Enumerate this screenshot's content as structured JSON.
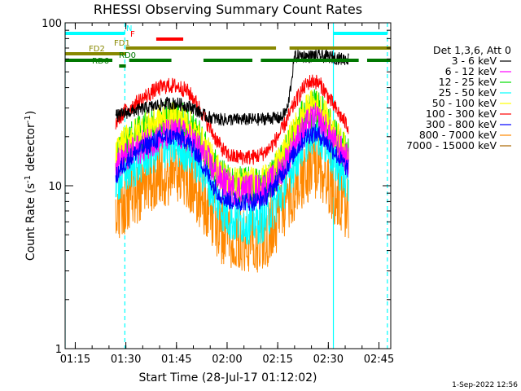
{
  "chart_data": {
    "type": "line",
    "title": "RHESSI Observing Summary Count Rates",
    "xlabel": "Start Time (28-Jul-17 01:12:02)",
    "ylabel_main": "Count Rate (s",
    "ylabel_sup1": "-1",
    "ylabel_mid": " detector",
    "ylabel_sup2": "-1",
    "ylabel_end": ")",
    "yscale": "log",
    "ylim": [
      1,
      100
    ],
    "xlim_minutes": [
      72,
      168.5
    ],
    "yticks": [
      {
        "value": 1,
        "label": "1"
      },
      {
        "value": 10,
        "label": "10"
      },
      {
        "value": 100,
        "label": "100"
      }
    ],
    "xticks": [
      {
        "minutes": 75,
        "label": "01:15"
      },
      {
        "minutes": 90,
        "label": "01:30"
      },
      {
        "minutes": 105,
        "label": "01:45"
      },
      {
        "minutes": 120,
        "label": "02:00"
      },
      {
        "minutes": 135,
        "label": "02:15"
      },
      {
        "minutes": 150,
        "label": "02:30"
      },
      {
        "minutes": 165,
        "label": "02:45"
      }
    ],
    "legend": {
      "header": "Det 1,3,6, Att 0",
      "placement": "right"
    },
    "x_minutes": [
      87,
      88,
      90,
      93,
      96,
      99,
      102,
      105,
      108,
      110,
      112,
      114,
      116,
      118,
      120,
      122,
      124,
      126,
      128,
      130,
      132,
      134,
      136,
      138,
      140,
      142,
      144,
      146,
      148,
      150,
      152,
      154,
      156
    ],
    "series": [
      {
        "name": "3 - 6 keV",
        "color": "#000000",
        "values": [
          27,
          27,
          28,
          29,
          30,
          31,
          32,
          32,
          31,
          30,
          28,
          26.5,
          26,
          25.5,
          25.5,
          25.5,
          25.5,
          25.5,
          25.5,
          25.5,
          26,
          26,
          26,
          30,
          62,
          63,
          62,
          63,
          62,
          62,
          61,
          60,
          60
        ]
      },
      {
        "name": "6 - 12 keV",
        "color": "#ff00ff",
        "values": [
          13,
          14,
          15,
          16.5,
          18,
          19.5,
          20.5,
          21,
          20,
          18.5,
          16.5,
          14.5,
          12.5,
          11,
          10,
          9.5,
          9.5,
          9.5,
          9.5,
          9.5,
          10,
          11,
          12.5,
          15,
          18,
          21,
          24,
          26,
          24,
          21,
          18,
          16,
          14
        ]
      },
      {
        "name": "12 - 25 keV",
        "color": "#00dd00",
        "values": [
          14,
          16,
          18,
          20,
          22.5,
          24.5,
          26,
          26,
          24.5,
          22,
          19,
          16,
          13.5,
          11.5,
          10.5,
          10,
          10,
          10,
          10,
          10,
          10.5,
          12,
          14,
          17,
          21,
          25,
          28,
          30,
          28,
          24,
          20,
          17,
          15
        ]
      },
      {
        "name": "25 - 50 keV",
        "color": "#00ffff",
        "values": [
          10,
          11,
          12,
          13.5,
          15,
          16.5,
          17.5,
          17.5,
          16.5,
          15,
          13,
          11,
          9,
          7.5,
          6.5,
          6,
          6,
          6,
          6,
          6,
          6.5,
          7.5,
          9,
          11,
          14,
          17,
          20,
          22,
          20,
          17,
          14,
          12,
          10
        ]
      },
      {
        "name": "50 - 100 keV",
        "color": "#ffff00",
        "values": [
          15,
          17,
          19,
          21,
          23,
          25,
          26,
          26,
          24.5,
          22,
          19,
          16.5,
          14,
          12,
          11,
          10.5,
          10.5,
          10.5,
          10.5,
          10.5,
          11,
          12.5,
          14.5,
          18,
          22,
          26,
          30,
          32,
          29,
          25,
          21,
          18,
          15.5
        ]
      },
      {
        "name": "100 - 300 keV",
        "color": "#ff0000",
        "values": [
          24,
          26,
          29,
          32,
          35.5,
          39,
          41,
          41,
          38.5,
          34.5,
          29.5,
          24.5,
          20.5,
          17.5,
          15.5,
          15,
          15,
          15,
          15,
          15.5,
          16.5,
          18.5,
          21.5,
          26,
          32,
          38,
          43,
          44,
          41,
          35,
          30,
          26,
          23
        ]
      },
      {
        "name": "300 - 800 keV",
        "color": "#0000ff",
        "values": [
          11,
          12.5,
          14,
          16,
          17.5,
          19,
          20,
          20,
          19,
          17,
          14.5,
          12,
          10,
          8.8,
          8.2,
          8,
          8,
          8,
          8,
          8.2,
          8.8,
          10,
          11.5,
          13.5,
          16,
          18.5,
          20.5,
          21,
          20,
          18,
          16,
          14,
          12.5
        ]
      },
      {
        "name": "800 - 7000 keV",
        "color": "#ff8800",
        "values": [
          6.5,
          7.5,
          8.5,
          9.5,
          10.5,
          11.5,
          12.5,
          12.5,
          12,
          10.5,
          9,
          7.5,
          6.5,
          5.5,
          5,
          4.7,
          4.7,
          4.7,
          4.7,
          4.8,
          5.2,
          6,
          7,
          8.5,
          10,
          11.5,
          13,
          13.5,
          12.5,
          11,
          9.5,
          8.5,
          7.5
        ]
      },
      {
        "name": "7000 - 15000 keV",
        "color": "#aa6600",
        "values": []
      }
    ],
    "flag_bars": [
      {
        "label": "N",
        "color": "#00ffff",
        "segments": [
          [
            72,
            89.7
          ],
          [
            151.5,
            167.5
          ]
        ]
      },
      {
        "label": "F",
        "color": "#ff0000",
        "segments": [
          [
            99,
            107
          ]
        ]
      },
      {
        "label": "FD1",
        "color": "#888800",
        "segments": [
          [
            90,
            134.5
          ],
          [
            138.5,
            168.5
          ]
        ]
      },
      {
        "label": "FD2",
        "color": "#888800",
        "segments": [
          [
            72,
            90
          ]
        ]
      },
      {
        "label": "RD0",
        "color": "#007700",
        "segments": [
          [
            72,
            86
          ],
          [
            91,
            103.5
          ],
          [
            113,
            127.5
          ],
          [
            130,
            159
          ],
          [
            161.5,
            168.5
          ]
        ]
      },
      {
        "label": "RD6",
        "color": "#007700",
        "segments": [
          [
            88,
            90
          ]
        ]
      }
    ],
    "vlines": [
      {
        "minutes": 72,
        "color": "#00ffff",
        "style": "solid"
      },
      {
        "minutes": 89.7,
        "color": "#00ffff",
        "style": "dashed"
      },
      {
        "minutes": 151.5,
        "color": "#00ffff",
        "style": "solid"
      },
      {
        "minutes": 167.5,
        "color": "#00ffff",
        "style": "dashed"
      }
    ]
  },
  "footer": {
    "timestamp": "1-Sep-2022 12:56"
  }
}
